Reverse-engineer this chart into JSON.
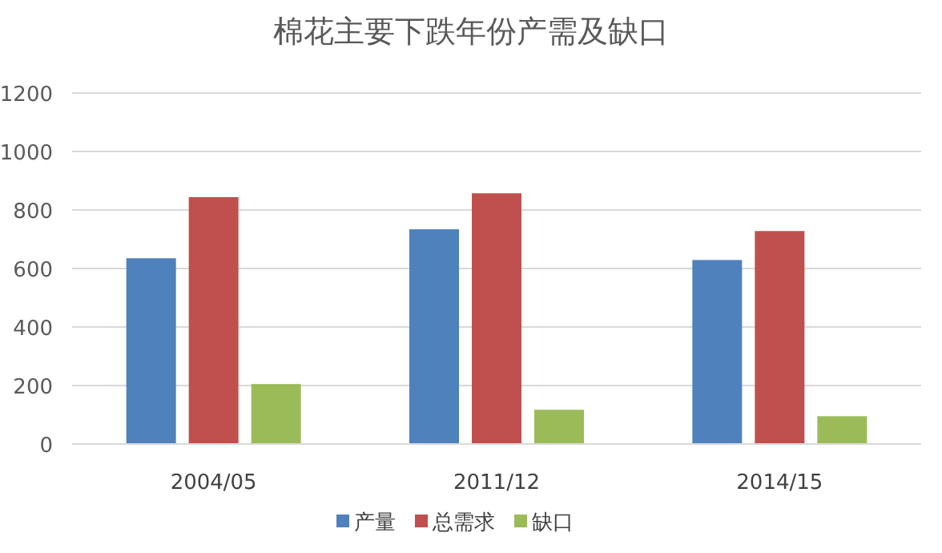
{
  "chart_data": {
    "type": "bar",
    "title": "棉花主要下跌年份产需及缺口",
    "categories": [
      "2004/05",
      "2011/12",
      "2014/15"
    ],
    "series": [
      {
        "name": "产量",
        "color": "#4f81bd",
        "values": [
          635,
          734,
          629
        ]
      },
      {
        "name": "总需求",
        "color": "#c0504d",
        "values": [
          844,
          857,
          728
        ]
      },
      {
        "name": "缺口",
        "color": "#9bbb59",
        "values": [
          205,
          117,
          95
        ]
      }
    ],
    "ylim": [
      0,
      1200
    ],
    "yticks": [
      0,
      200,
      400,
      600,
      800,
      1000,
      1200
    ],
    "grid": "y",
    "legend": "bottom"
  }
}
